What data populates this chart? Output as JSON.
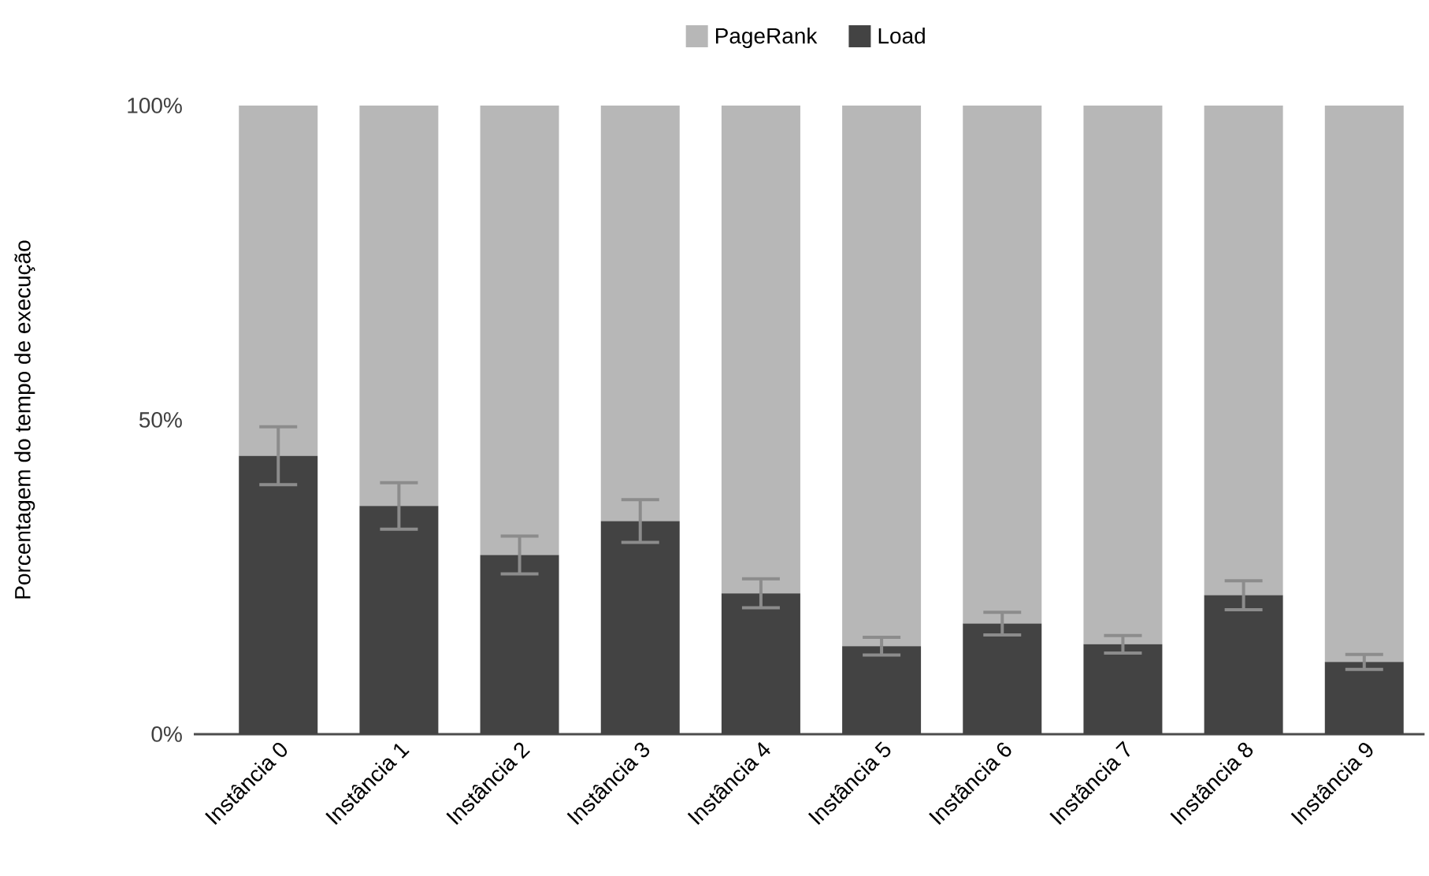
{
  "chart_data": {
    "type": "bar",
    "stacked": true,
    "ylabel": "Porcentagem do tempo de execução",
    "categories": [
      "Instância 0",
      "Instância 1",
      "Instância 2",
      "Instância 3",
      "Instância 4",
      "Instância 5",
      "Instância 6",
      "Instância 7",
      "Instância 8",
      "Instância 9"
    ],
    "series": [
      {
        "name": "Load",
        "color": "#434343",
        "values": [
          44.3,
          36.3,
          28.5,
          33.9,
          22.4,
          14.0,
          17.6,
          14.3,
          22.1,
          11.5
        ],
        "errors": [
          4.6,
          3.7,
          3.0,
          3.4,
          2.3,
          1.4,
          1.8,
          1.4,
          2.3,
          1.2
        ]
      },
      {
        "name": "PageRank",
        "color": "#b7b7b7",
        "values": [
          55.7,
          63.7,
          71.5,
          66.1,
          77.6,
          86.0,
          82.4,
          85.7,
          77.9,
          88.5
        ]
      }
    ],
    "ylim": [
      0,
      100
    ],
    "yticks": [
      {
        "value": 0,
        "label": "0%"
      },
      {
        "value": 50,
        "label": "50%"
      },
      {
        "value": 100,
        "label": "100%"
      }
    ],
    "legend": "top",
    "grid": false
  }
}
